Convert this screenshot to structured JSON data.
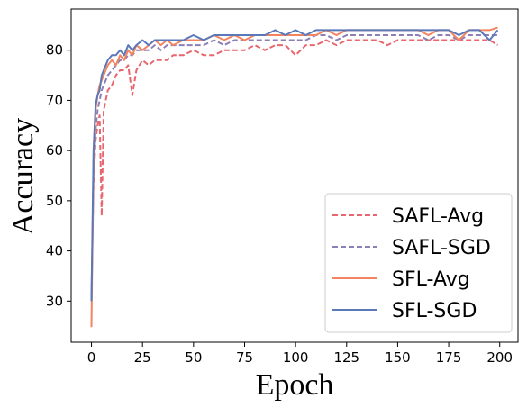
{
  "chart_data": {
    "type": "line",
    "xlabel": "Epoch",
    "ylabel": "Accuracy",
    "xlim": [
      -9.95,
      208.95
    ],
    "ylim": [
      21.8,
      88.2
    ],
    "xticks": [
      0,
      25,
      50,
      75,
      100,
      125,
      150,
      175,
      200
    ],
    "yticks": [
      30,
      40,
      50,
      60,
      70,
      80
    ],
    "grid": false,
    "legend_position": "lower-right",
    "series": [
      {
        "name": "SAFL-Avg",
        "color": "#e8666e",
        "style": "dashed",
        "x": [
          0,
          1,
          2,
          3,
          4,
          5,
          6,
          7,
          8,
          10,
          12,
          14,
          16,
          18,
          20,
          22,
          25,
          28,
          31,
          34,
          37,
          40,
          45,
          50,
          55,
          60,
          65,
          70,
          75,
          80,
          85,
          90,
          95,
          100,
          105,
          110,
          115,
          120,
          125,
          130,
          135,
          140,
          145,
          150,
          155,
          160,
          165,
          170,
          175,
          180,
          185,
          190,
          195,
          199
        ],
        "values": [
          31,
          53,
          62,
          65,
          67,
          47,
          68,
          70,
          72,
          73,
          75,
          76,
          76,
          77,
          71,
          76,
          78,
          77,
          78,
          78,
          78,
          79,
          79,
          80,
          79,
          79,
          80,
          80,
          80,
          81,
          80,
          81,
          81,
          79,
          81,
          81,
          82,
          81,
          82,
          82,
          82,
          82,
          81,
          82,
          82,
          82,
          82,
          82,
          82,
          82,
          82,
          82,
          82,
          81
        ]
      },
      {
        "name": "SAFL-SGD",
        "color": "#8c7fb6",
        "style": "dashed",
        "x": [
          0,
          1,
          2,
          3,
          4,
          5,
          6,
          7,
          8,
          10,
          12,
          14,
          16,
          18,
          20,
          22,
          25,
          28,
          31,
          34,
          37,
          40,
          45,
          50,
          55,
          60,
          65,
          70,
          75,
          80,
          85,
          90,
          95,
          100,
          105,
          110,
          115,
          120,
          125,
          130,
          135,
          140,
          145,
          150,
          155,
          160,
          165,
          170,
          175,
          180,
          185,
          190,
          195,
          199
        ],
        "values": [
          30,
          55,
          64,
          68,
          70,
          72,
          73,
          74,
          75,
          76,
          77,
          78,
          78,
          79,
          79,
          80,
          80,
          80,
          81,
          80,
          81,
          81,
          81,
          81,
          81,
          82,
          81,
          82,
          82,
          82,
          82,
          82,
          82,
          82,
          82,
          83,
          83,
          82,
          83,
          83,
          83,
          83,
          83,
          83,
          83,
          83,
          82,
          83,
          83,
          82,
          83,
          83,
          83,
          83
        ]
      },
      {
        "name": "SFL-Avg",
        "color": "#f4845f",
        "style": "solid",
        "x": [
          0,
          1,
          2,
          3,
          4,
          5,
          6,
          7,
          8,
          10,
          12,
          14,
          16,
          18,
          20,
          22,
          25,
          28,
          31,
          34,
          37,
          40,
          45,
          50,
          55,
          60,
          65,
          70,
          75,
          80,
          85,
          90,
          95,
          100,
          105,
          110,
          115,
          120,
          125,
          130,
          135,
          140,
          145,
          150,
          155,
          160,
          165,
          170,
          175,
          180,
          185,
          190,
          195,
          199
        ],
        "values": [
          24.8,
          58,
          68,
          71,
          73,
          74,
          75,
          76,
          77,
          78,
          77,
          79,
          78,
          80,
          79,
          81,
          80,
          81,
          82,
          81,
          82,
          81,
          82,
          82,
          82,
          83,
          82,
          83,
          82,
          83,
          83,
          83,
          83,
          83,
          83,
          83,
          84,
          83,
          84,
          84,
          84,
          84,
          84,
          84,
          84,
          84,
          83,
          84,
          84,
          82,
          84,
          84,
          84,
          84.5
        ]
      },
      {
        "name": "SFL-SGD",
        "color": "#5b79b8",
        "style": "solid",
        "x": [
          0,
          1,
          2,
          3,
          4,
          5,
          6,
          7,
          8,
          10,
          12,
          14,
          16,
          18,
          20,
          22,
          25,
          28,
          31,
          34,
          37,
          40,
          45,
          50,
          55,
          60,
          65,
          70,
          75,
          80,
          85,
          90,
          95,
          100,
          105,
          110,
          115,
          120,
          125,
          130,
          135,
          140,
          145,
          150,
          155,
          160,
          165,
          170,
          175,
          180,
          185,
          190,
          195,
          199
        ],
        "values": [
          30,
          60,
          69,
          71,
          72,
          75,
          76,
          77,
          78,
          79,
          79,
          80,
          79,
          81,
          80,
          81,
          82,
          81,
          82,
          82,
          82,
          82,
          82,
          83,
          82,
          83,
          83,
          83,
          83,
          83,
          83,
          84,
          83,
          84,
          83,
          84,
          84,
          84,
          84,
          84,
          84,
          84,
          84,
          84,
          84,
          84,
          84,
          84,
          84,
          83,
          84,
          84,
          82,
          84
        ]
      }
    ]
  }
}
